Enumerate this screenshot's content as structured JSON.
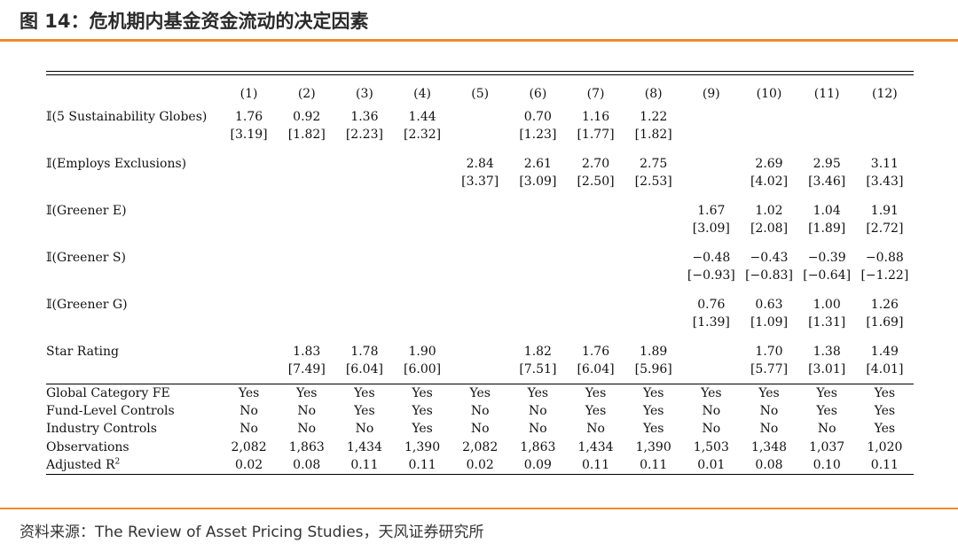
{
  "header": {
    "title": "图 14：危机期内基金资金流动的决定因素",
    "accent_color": "#ef8b2c"
  },
  "footer": {
    "source": "资料来源：The Review of Asset Pricing Studies，天风证券研究所"
  },
  "table": {
    "columns": [
      "(1)",
      "(2)",
      "(3)",
      "(4)",
      "(5)",
      "(6)",
      "(7)",
      "(8)",
      "(9)",
      "(10)",
      "(11)",
      "(12)"
    ],
    "variables": [
      {
        "label": "𝕀(5 Sustainability Globes)",
        "coef": [
          "1.76",
          "0.92",
          "1.36",
          "1.44",
          "",
          "0.70",
          "1.16",
          "1.22",
          "",
          "",
          "",
          ""
        ],
        "se": [
          "[3.19]",
          "[1.82]",
          "[2.23]",
          "[2.32]",
          "",
          "[1.23]",
          "[1.77]",
          "[1.82]",
          "",
          "",
          "",
          ""
        ]
      },
      {
        "label": "𝕀(Employs Exclusions)",
        "coef": [
          "",
          "",
          "",
          "",
          "2.84",
          "2.61",
          "2.70",
          "2.75",
          "",
          "2.69",
          "2.95",
          "3.11"
        ],
        "se": [
          "",
          "",
          "",
          "",
          "[3.37]",
          "[3.09]",
          "[2.50]",
          "[2.53]",
          "",
          "[4.02]",
          "[3.46]",
          "[3.43]"
        ]
      },
      {
        "label": "𝕀(Greener E)",
        "coef": [
          "",
          "",
          "",
          "",
          "",
          "",
          "",
          "",
          "1.67",
          "1.02",
          "1.04",
          "1.91"
        ],
        "se": [
          "",
          "",
          "",
          "",
          "",
          "",
          "",
          "",
          "[3.09]",
          "[2.08]",
          "[1.89]",
          "[2.72]"
        ]
      },
      {
        "label": "𝕀(Greener S)",
        "coef": [
          "",
          "",
          "",
          "",
          "",
          "",
          "",
          "",
          "−0.48",
          "−0.43",
          "−0.39",
          "−0.88"
        ],
        "se": [
          "",
          "",
          "",
          "",
          "",
          "",
          "",
          "",
          "[−0.93]",
          "[−0.83]",
          "[−0.64]",
          "[−1.22]"
        ]
      },
      {
        "label": "𝕀(Greener G)",
        "coef": [
          "",
          "",
          "",
          "",
          "",
          "",
          "",
          "",
          "0.76",
          "0.63",
          "1.00",
          "1.26"
        ],
        "se": [
          "",
          "",
          "",
          "",
          "",
          "",
          "",
          "",
          "[1.39]",
          "[1.09]",
          "[1.31]",
          "[1.69]"
        ]
      },
      {
        "label": "Star Rating",
        "coef": [
          "",
          "1.83",
          "1.78",
          "1.90",
          "",
          "1.82",
          "1.76",
          "1.89",
          "",
          "1.70",
          "1.38",
          "1.49"
        ],
        "se": [
          "",
          "[7.49]",
          "[6.04]",
          "[6.00]",
          "",
          "[7.51]",
          "[6.04]",
          "[5.96]",
          "",
          "[5.77]",
          "[3.01]",
          "[4.01]"
        ]
      }
    ],
    "controls": [
      {
        "label": "Global Category FE",
        "values": [
          "Yes",
          "Yes",
          "Yes",
          "Yes",
          "Yes",
          "Yes",
          "Yes",
          "Yes",
          "Yes",
          "Yes",
          "Yes",
          "Yes"
        ]
      },
      {
        "label": "Fund-Level Controls",
        "values": [
          "No",
          "No",
          "Yes",
          "Yes",
          "No",
          "No",
          "Yes",
          "Yes",
          "No",
          "No",
          "Yes",
          "Yes"
        ]
      },
      {
        "label": "Industry Controls",
        "values": [
          "No",
          "No",
          "No",
          "Yes",
          "No",
          "No",
          "No",
          "Yes",
          "No",
          "No",
          "No",
          "Yes"
        ]
      },
      {
        "label": "Observations",
        "values": [
          "2,082",
          "1,863",
          "1,434",
          "1,390",
          "2,082",
          "1,863",
          "1,434",
          "1,390",
          "1,503",
          "1,348",
          "1,037",
          "1,020"
        ]
      },
      {
        "label": "Adjusted R",
        "label_sup": "2",
        "values": [
          "0.02",
          "0.08",
          "0.11",
          "0.11",
          "0.02",
          "0.09",
          "0.11",
          "0.11",
          "0.01",
          "0.08",
          "0.10",
          "0.11"
        ]
      }
    ]
  }
}
